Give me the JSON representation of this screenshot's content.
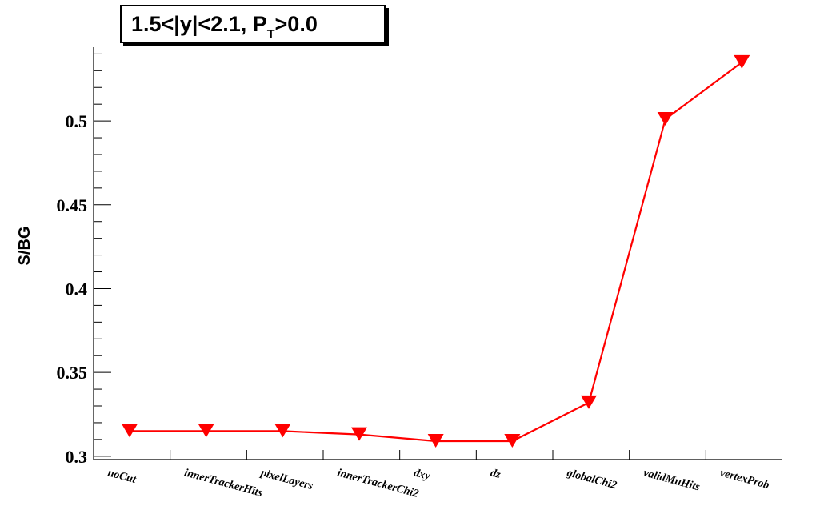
{
  "chart_data": {
    "type": "line",
    "title_parts": {
      "pre": "1.5<|y|<2.1, P",
      "sub": "T",
      "post": ">0.0"
    },
    "ylabel": "S/BG",
    "xlabel": "",
    "categories": [
      "noCut",
      "innerTrackerHits",
      "pixelLayers",
      "innerTrackerChi2",
      "dxy",
      "dz",
      "globalChi2",
      "validMuHits",
      "vertexProb"
    ],
    "series": [
      {
        "values": [
          0.315,
          0.315,
          0.315,
          0.313,
          0.309,
          0.309,
          0.332,
          0.501,
          0.535
        ],
        "color": "#ff0000",
        "marker": "triangle-down"
      }
    ],
    "ylim": [
      0.298,
      0.544
    ],
    "yticks": [
      "0.3",
      "0.35",
      "0.4",
      "0.45",
      "0.5"
    ],
    "grid": false,
    "legend": "none"
  }
}
